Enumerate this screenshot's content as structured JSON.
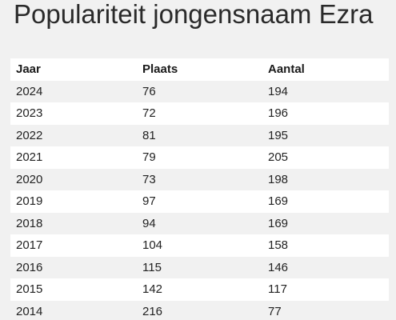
{
  "title": "Populariteit jongensnaam Ezra",
  "table": {
    "headers": [
      "Jaar",
      "Plaats",
      "Aantal"
    ],
    "rows": [
      [
        "2024",
        "76",
        "194"
      ],
      [
        "2023",
        "72",
        "196"
      ],
      [
        "2022",
        "81",
        "195"
      ],
      [
        "2021",
        "79",
        "205"
      ],
      [
        "2020",
        "73",
        "198"
      ],
      [
        "2019",
        "97",
        "169"
      ],
      [
        "2018",
        "94",
        "169"
      ],
      [
        "2017",
        "104",
        "158"
      ],
      [
        "2016",
        "115",
        "146"
      ],
      [
        "2015",
        "142",
        "117"
      ],
      [
        "2014",
        "216",
        "77"
      ]
    ]
  }
}
